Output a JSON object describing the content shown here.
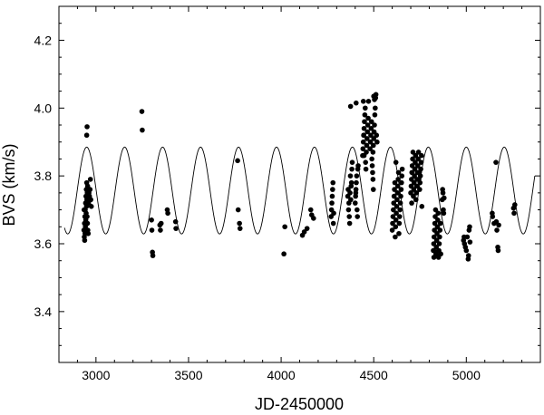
{
  "chart_data": {
    "type": "scatter",
    "xlabel": "JD-2450000",
    "ylabel": "BVS (km/s)",
    "xlim": [
      2800,
      5400
    ],
    "ylim": [
      3.25,
      4.3
    ],
    "x_ticks": [
      3000,
      3500,
      4000,
      4500,
      5000
    ],
    "x_tick_labels": [
      "3000",
      "3500",
      "4000",
      "4500",
      "5000"
    ],
    "y_ticks": [
      3.4,
      3.6,
      3.8,
      4.0,
      4.2
    ],
    "y_tick_labels": [
      "3.4",
      "3.6",
      "3.8",
      "4.0",
      "4.2"
    ],
    "grid": false,
    "series": [
      {
        "kind": "points",
        "color": "#000000",
        "points": [
          [
            2935,
            3.64
          ],
          [
            2938,
            3.66
          ],
          [
            2940,
            3.68
          ],
          [
            2942,
            3.7
          ],
          [
            2944,
            3.72
          ],
          [
            2946,
            3.74
          ],
          [
            2948,
            3.76
          ],
          [
            2950,
            3.78
          ],
          [
            2937,
            3.62
          ],
          [
            2939,
            3.61
          ],
          [
            2941,
            3.63
          ],
          [
            2943,
            3.65
          ],
          [
            2945,
            3.67
          ],
          [
            2947,
            3.69
          ],
          [
            2949,
            3.71
          ],
          [
            2951,
            3.73
          ],
          [
            2953,
            3.75
          ],
          [
            2955,
            3.77
          ],
          [
            2936,
            3.7
          ],
          [
            2952,
            3.68
          ],
          [
            2954,
            3.66
          ],
          [
            2956,
            3.64
          ],
          [
            2958,
            3.63
          ],
          [
            2960,
            3.72
          ],
          [
            2962,
            3.75
          ],
          [
            2965,
            3.74
          ],
          [
            2968,
            3.76
          ],
          [
            2970,
            3.79
          ],
          [
            2972,
            3.73
          ],
          [
            2975,
            3.71
          ],
          [
            2950,
            3.92
          ],
          [
            2952,
            3.945
          ],
          [
            3248,
            3.99
          ],
          [
            3250,
            3.935
          ],
          [
            3300,
            3.67
          ],
          [
            3302,
            3.64
          ],
          [
            3305,
            3.575
          ],
          [
            3307,
            3.565
          ],
          [
            3345,
            3.655
          ],
          [
            3348,
            3.64
          ],
          [
            3352,
            3.66
          ],
          [
            3385,
            3.7
          ],
          [
            3388,
            3.69
          ],
          [
            3430,
            3.665
          ],
          [
            3432,
            3.645
          ],
          [
            3765,
            3.845
          ],
          [
            3768,
            3.7
          ],
          [
            3775,
            3.66
          ],
          [
            3778,
            3.645
          ],
          [
            4020,
            3.65
          ],
          [
            4015,
            3.57
          ],
          [
            4115,
            3.625
          ],
          [
            4125,
            3.635
          ],
          [
            4140,
            3.645
          ],
          [
            4160,
            3.7
          ],
          [
            4165,
            3.685
          ],
          [
            4175,
            3.675
          ],
          [
            4270,
            3.68
          ],
          [
            4272,
            3.7
          ],
          [
            4274,
            3.72
          ],
          [
            4276,
            3.74
          ],
          [
            4278,
            3.76
          ],
          [
            4280,
            3.78
          ],
          [
            4282,
            3.66
          ],
          [
            4284,
            3.69
          ],
          [
            4360,
            3.74
          ],
          [
            4362,
            3.76
          ],
          [
            4364,
            3.7
          ],
          [
            4366,
            3.72
          ],
          [
            4368,
            3.68
          ],
          [
            4370,
            3.66
          ],
          [
            4372,
            3.75
          ],
          [
            4374,
            3.8
          ],
          [
            4376,
            3.73
          ],
          [
            4380,
            3.78
          ],
          [
            4382,
            3.82
          ],
          [
            4384,
            3.84
          ],
          [
            4375,
            4.005
          ],
          [
            4378,
            3.77
          ],
          [
            4400,
            3.72
          ],
          [
            4402,
            3.74
          ],
          [
            4404,
            3.76
          ],
          [
            4406,
            3.78
          ],
          [
            4408,
            3.8
          ],
          [
            4410,
            3.7
          ],
          [
            4412,
            3.68
          ],
          [
            4414,
            3.82
          ],
          [
            4416,
            3.83
          ],
          [
            4405,
            4.015
          ],
          [
            4403,
            3.75
          ],
          [
            4440,
            3.86
          ],
          [
            4442,
            3.88
          ],
          [
            4444,
            3.9
          ],
          [
            4446,
            3.92
          ],
          [
            4448,
            3.94
          ],
          [
            4450,
            3.96
          ],
          [
            4452,
            3.98
          ],
          [
            4454,
            4.0
          ],
          [
            4456,
            3.84
          ],
          [
            4458,
            3.82
          ],
          [
            4460,
            3.87
          ],
          [
            4462,
            3.89
          ],
          [
            4464,
            3.91
          ],
          [
            4466,
            3.93
          ],
          [
            4468,
            3.95
          ],
          [
            4470,
            3.97
          ],
          [
            4472,
            4.02
          ],
          [
            4444,
            4.02
          ],
          [
            4446,
            3.92
          ],
          [
            4448,
            3.86
          ],
          [
            4480,
            3.88
          ],
          [
            4482,
            3.9
          ],
          [
            4484,
            3.92
          ],
          [
            4486,
            3.94
          ],
          [
            4488,
            3.96
          ],
          [
            4490,
            3.85
          ],
          [
            4492,
            3.83
          ],
          [
            4494,
            3.81
          ],
          [
            4496,
            3.87
          ],
          [
            4498,
            3.89
          ],
          [
            4500,
            3.91
          ],
          [
            4502,
            3.93
          ],
          [
            4504,
            3.95
          ],
          [
            4506,
            3.98
          ],
          [
            4508,
            4.0
          ],
          [
            4510,
            4.03
          ],
          [
            4512,
            4.04
          ],
          [
            4500,
            4.035
          ],
          [
            4504,
            4.025
          ],
          [
            4515,
            3.92
          ],
          [
            4518,
            3.9
          ],
          [
            4498,
            3.76
          ],
          [
            4496,
            3.79
          ],
          [
            4600,
            3.64
          ],
          [
            4602,
            3.66
          ],
          [
            4604,
            3.68
          ],
          [
            4606,
            3.7
          ],
          [
            4608,
            3.72
          ],
          [
            4610,
            3.74
          ],
          [
            4612,
            3.76
          ],
          [
            4614,
            3.78
          ],
          [
            4616,
            3.62
          ],
          [
            4618,
            3.65
          ],
          [
            4620,
            3.67
          ],
          [
            4622,
            3.69
          ],
          [
            4624,
            3.71
          ],
          [
            4626,
            3.73
          ],
          [
            4628,
            3.75
          ],
          [
            4630,
            3.77
          ],
          [
            4632,
            3.79
          ],
          [
            4634,
            3.81
          ],
          [
            4636,
            3.63
          ],
          [
            4638,
            3.66
          ],
          [
            4640,
            3.68
          ],
          [
            4642,
            3.7
          ],
          [
            4644,
            3.72
          ],
          [
            4646,
            3.74
          ],
          [
            4648,
            3.76
          ],
          [
            4650,
            3.78
          ],
          [
            4652,
            3.8
          ],
          [
            4654,
            3.82
          ],
          [
            4620,
            3.84
          ],
          [
            4700,
            3.75
          ],
          [
            4702,
            3.77
          ],
          [
            4704,
            3.79
          ],
          [
            4706,
            3.81
          ],
          [
            4708,
            3.83
          ],
          [
            4710,
            3.85
          ],
          [
            4712,
            3.87
          ],
          [
            4714,
            3.74
          ],
          [
            4716,
            3.76
          ],
          [
            4718,
            3.78
          ],
          [
            4720,
            3.8
          ],
          [
            4722,
            3.82
          ],
          [
            4724,
            3.84
          ],
          [
            4726,
            3.86
          ],
          [
            4728,
            3.73
          ],
          [
            4730,
            3.75
          ],
          [
            4732,
            3.77
          ],
          [
            4734,
            3.79
          ],
          [
            4736,
            3.81
          ],
          [
            4738,
            3.83
          ],
          [
            4740,
            3.85
          ],
          [
            4742,
            3.87
          ],
          [
            4744,
            3.79
          ],
          [
            4746,
            3.81
          ],
          [
            4748,
            3.76
          ],
          [
            4750,
            3.78
          ],
          [
            4752,
            3.8
          ],
          [
            4754,
            3.82
          ],
          [
            4756,
            3.84
          ],
          [
            4758,
            3.86
          ],
          [
            4760,
            3.71
          ],
          [
            4705,
            3.72
          ],
          [
            4822,
            3.58
          ],
          [
            4824,
            3.6
          ],
          [
            4826,
            3.62
          ],
          [
            4828,
            3.64
          ],
          [
            4830,
            3.66
          ],
          [
            4832,
            3.68
          ],
          [
            4834,
            3.7
          ],
          [
            4836,
            3.57
          ],
          [
            4838,
            3.59
          ],
          [
            4840,
            3.61
          ],
          [
            4842,
            3.63
          ],
          [
            4844,
            3.65
          ],
          [
            4846,
            3.67
          ],
          [
            4848,
            3.69
          ],
          [
            4850,
            3.56
          ],
          [
            4852,
            3.58
          ],
          [
            4854,
            3.6
          ],
          [
            4856,
            3.62
          ],
          [
            4858,
            3.64
          ],
          [
            4860,
            3.66
          ],
          [
            4862,
            3.57
          ],
          [
            4825,
            3.56
          ],
          [
            4845,
            3.565
          ],
          [
            4835,
            3.575
          ],
          [
            4870,
            3.73
          ],
          [
            4872,
            3.76
          ],
          [
            4874,
            3.75
          ],
          [
            4876,
            3.7
          ],
          [
            4878,
            3.69
          ],
          [
            4880,
            3.735
          ],
          [
            4985,
            3.61
          ],
          [
            4988,
            3.62
          ],
          [
            4990,
            3.6
          ],
          [
            4995,
            3.59
          ],
          [
            5000,
            3.58
          ],
          [
            5005,
            3.62
          ],
          [
            5010,
            3.555
          ],
          [
            5012,
            3.565
          ],
          [
            5015,
            3.64
          ],
          [
            5018,
            3.65
          ],
          [
            5020,
            3.605
          ],
          [
            5140,
            3.69
          ],
          [
            5142,
            3.68
          ],
          [
            5150,
            3.66
          ],
          [
            5160,
            3.84
          ],
          [
            5162,
            3.665
          ],
          [
            5165,
            3.64
          ],
          [
            5170,
            3.59
          ],
          [
            5172,
            3.58
          ],
          [
            5175,
            3.655
          ],
          [
            5255,
            3.705
          ],
          [
            5258,
            3.69
          ],
          [
            5262,
            3.715
          ]
        ]
      },
      {
        "kind": "sine-fit",
        "color": "#000000",
        "mean": 3.757,
        "amplitude": 0.128,
        "period": 205,
        "x_at_maximum": 2950,
        "x_range": [
          2830,
          5370
        ]
      }
    ]
  }
}
